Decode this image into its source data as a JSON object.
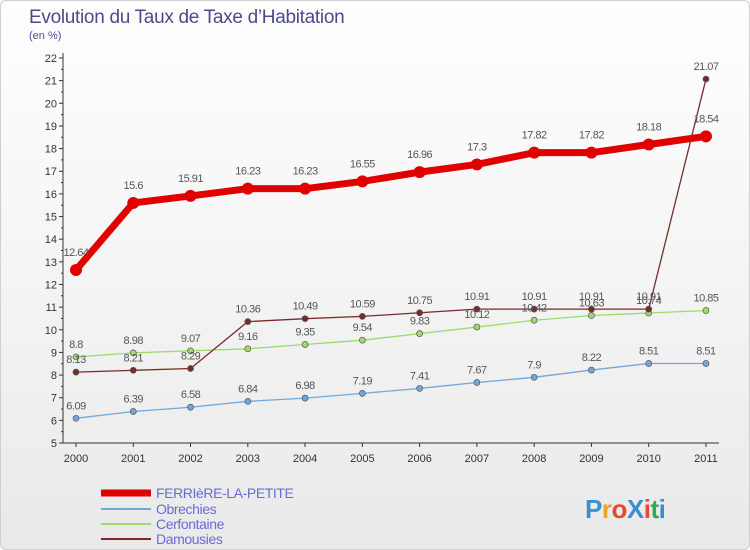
{
  "title": "Evolution du Taux de Taxe d’Habitation",
  "subtitle": "(en %)",
  "logo": {
    "text": "ProXiti",
    "colors": [
      "#3a8fd0",
      "#f0a030",
      "#e34a2e",
      "#3a8fd0",
      "#e34a2e",
      "#2eaa5a",
      "#3a8fd0"
    ]
  },
  "chart_data": {
    "type": "line",
    "x": [
      "2000",
      "2001",
      "2002",
      "2003",
      "2004",
      "2005",
      "2006",
      "2007",
      "2008",
      "2009",
      "2010",
      "2011"
    ],
    "ylim": [
      5,
      22
    ],
    "yticks": [
      5,
      6,
      7,
      8,
      9,
      10,
      11,
      12,
      13,
      14,
      15,
      16,
      17,
      18,
      19,
      20,
      21,
      22
    ],
    "grid": false,
    "legend_position": "bottom-left",
    "series": [
      {
        "name": "FERRIèRE-LA-PETITE",
        "color": "#e00000",
        "width": 7,
        "marker_r": 6,
        "values": [
          12.64,
          15.6,
          15.91,
          16.23,
          16.23,
          16.55,
          16.96,
          17.3,
          17.82,
          17.82,
          18.18,
          18.54
        ],
        "labels": [
          "12.64",
          "15.6",
          "15.91",
          "16.23",
          "16.23",
          "16.55",
          "16.96",
          "17.3",
          "17.82",
          "17.82",
          "18.18",
          "18.54"
        ]
      },
      {
        "name": "Obrechies",
        "color": "#6fa8dc",
        "width": 1.3,
        "marker_r": 3,
        "values": [
          6.09,
          6.39,
          6.58,
          6.84,
          6.98,
          7.19,
          7.41,
          7.67,
          7.9,
          8.22,
          8.51,
          8.51
        ],
        "labels": [
          "6.09",
          "6.39",
          "6.58",
          "6.84",
          "6.98",
          "7.19",
          "7.41",
          "7.67",
          "7.9",
          "8.22",
          "8.51",
          "8.51"
        ]
      },
      {
        "name": "Cerfontaine",
        "color": "#9ddb6a",
        "width": 1.3,
        "marker_r": 3,
        "values": [
          8.8,
          8.98,
          9.07,
          9.16,
          9.35,
          9.54,
          9.83,
          10.12,
          10.42,
          10.63,
          10.74,
          10.85
        ],
        "labels": [
          "8.8",
          "8.98",
          "9.07",
          "9.16",
          "9.35",
          "9.54",
          "9.83",
          "10.12",
          "10.42",
          "10.63",
          "10.74",
          "10.85"
        ]
      },
      {
        "name": "Damousies",
        "color": "#7a2a2a",
        "width": 1.3,
        "marker_r": 3,
        "values": [
          8.13,
          8.21,
          8.29,
          10.36,
          10.49,
          10.59,
          10.75,
          10.91,
          10.91,
          10.91,
          10.91,
          21.07
        ],
        "labels": [
          "8.13",
          "8.21",
          "8.29",
          "10.36",
          "10.49",
          "10.59",
          "10.75",
          "10.91",
          "10.91",
          "10.91",
          "10.91",
          "21.07"
        ]
      }
    ]
  }
}
